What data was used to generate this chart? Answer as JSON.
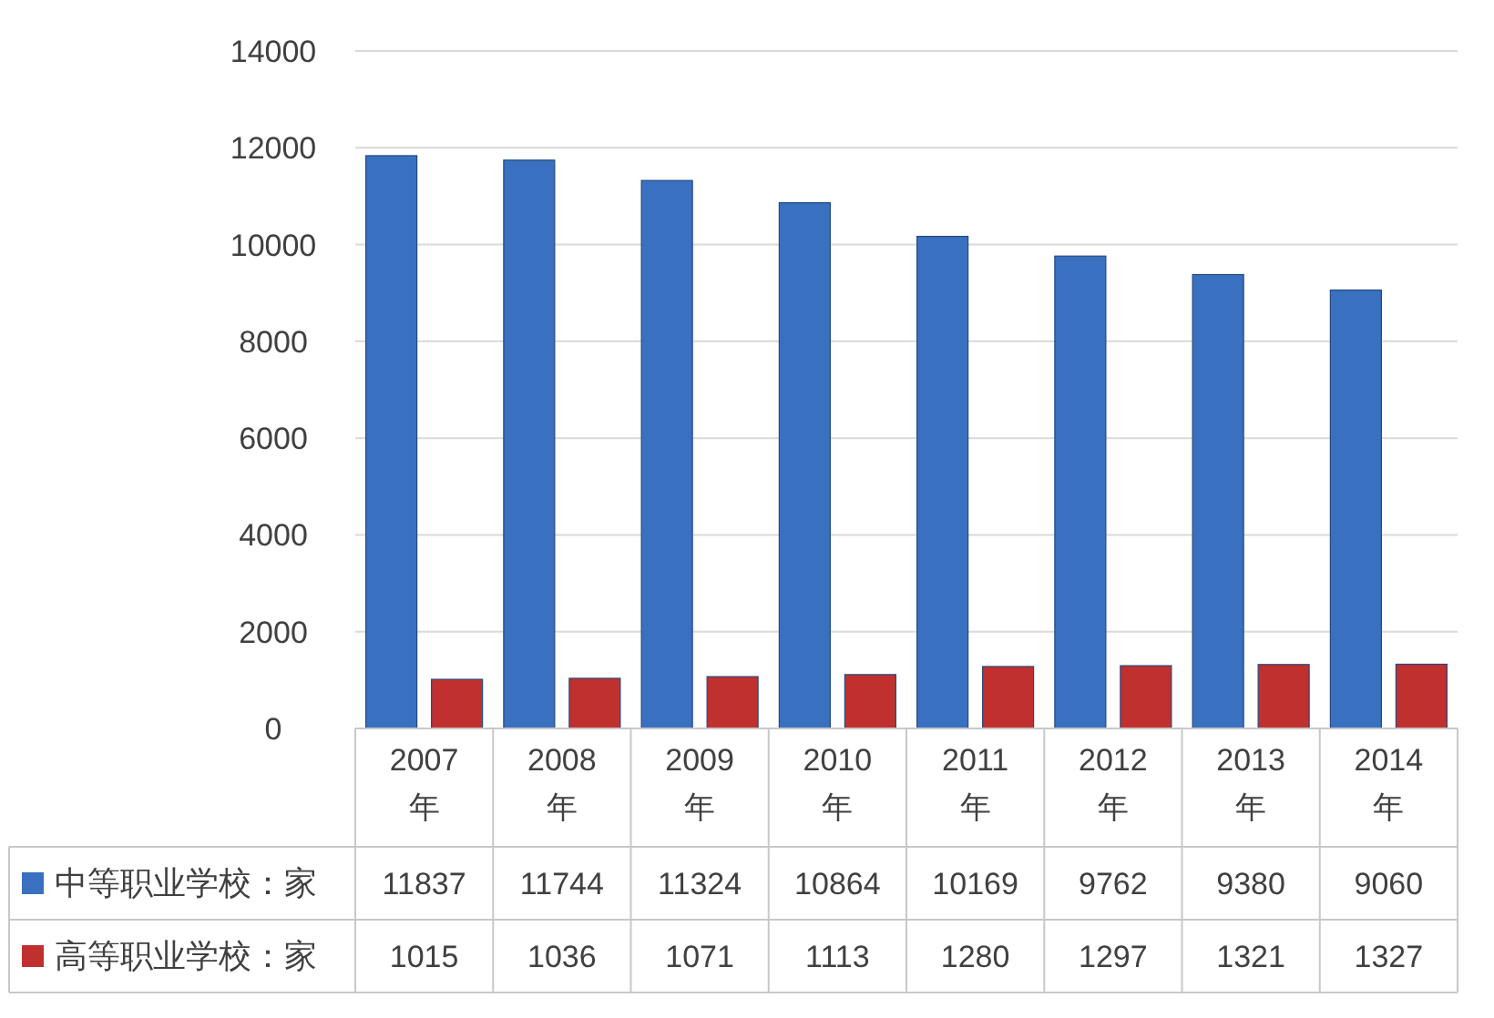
{
  "chart_data": {
    "type": "bar",
    "categories": [
      "2007年",
      "2008年",
      "2009年",
      "2010年",
      "2011年",
      "2012年",
      "2013年",
      "2014年"
    ],
    "series": [
      {
        "name": "中等职业学校：家",
        "color": "#3a70c0",
        "values": [
          11837,
          11744,
          11324,
          10864,
          10169,
          9762,
          9380,
          9060
        ]
      },
      {
        "name": "高等职业学校：家",
        "color": "#c0302e",
        "values": [
          1015,
          1036,
          1071,
          1113,
          1280,
          1297,
          1321,
          1327
        ]
      }
    ],
    "ylim": [
      0,
      14000
    ],
    "yticks": [
      0,
      2000,
      4000,
      6000,
      8000,
      10000,
      12000,
      14000
    ],
    "grid": "y",
    "data_labels": true,
    "legend": "bottom"
  }
}
